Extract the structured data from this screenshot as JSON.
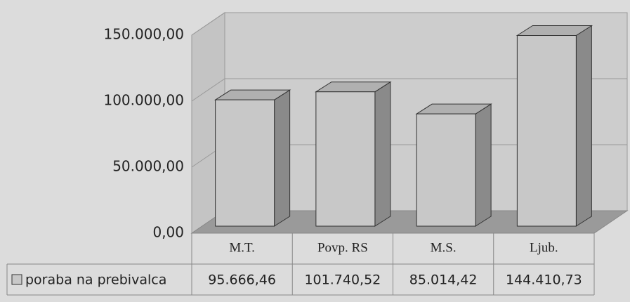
{
  "chart_data": {
    "type": "bar3d",
    "categories": [
      "M.T.",
      "Povp. RS",
      "M.S.",
      "Ljub."
    ],
    "series": [
      {
        "name": "poraba na prebivalca",
        "color": "#c8c8c8",
        "values": [
          95666.46,
          101740.52,
          85014.42,
          144410.73
        ],
        "value_labels": [
          "95.666,46",
          "101.740,52",
          "85.014,42",
          "144.410,73"
        ]
      }
    ],
    "ylim": [
      0,
      150000
    ],
    "yticks": [
      {
        "value": 0,
        "label": "0,00"
      },
      {
        "value": 50000,
        "label": "50.000,00"
      },
      {
        "value": 100000,
        "label": "100.000,00"
      },
      {
        "value": 150000,
        "label": "150.000,00"
      }
    ],
    "grid": true
  }
}
